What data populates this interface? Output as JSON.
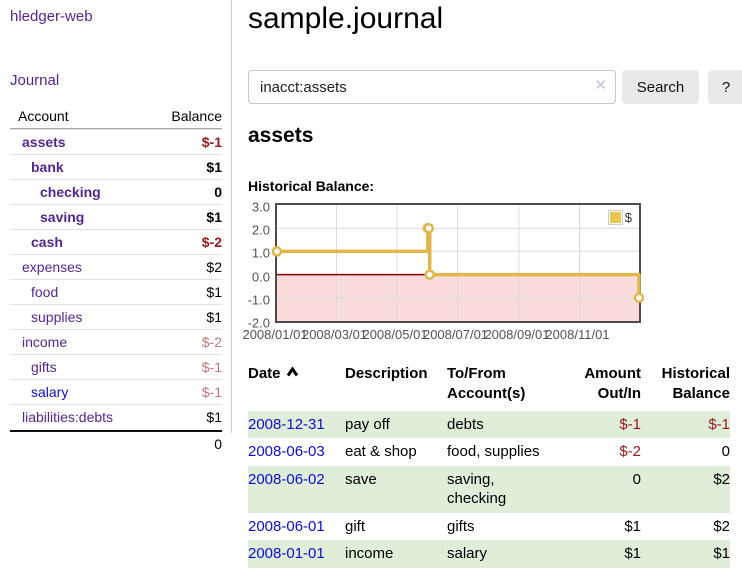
{
  "app": {
    "title": "hledger-web",
    "nav_journal": "Journal"
  },
  "sidebar": {
    "headers": {
      "account": "Account",
      "balance": "Balance"
    },
    "accounts": [
      {
        "name": "assets",
        "level": 1,
        "bold": true,
        "balance": "$-1",
        "balance_style": "neg"
      },
      {
        "name": "bank",
        "level": 2,
        "bold": true,
        "balance": "$1",
        "balance_style": "pos"
      },
      {
        "name": "checking",
        "level": 3,
        "bold": true,
        "balance": "0",
        "balance_style": "pos"
      },
      {
        "name": "saving",
        "level": 3,
        "bold": true,
        "balance": "$1",
        "balance_style": "pos"
      },
      {
        "name": "cash",
        "level": 2,
        "bold": true,
        "balance": "$-2",
        "balance_style": "neg"
      },
      {
        "name": "expenses",
        "level": 1,
        "bold": false,
        "balance": "$2",
        "balance_style": "pos"
      },
      {
        "name": "food",
        "level": 2,
        "bold": false,
        "balance": "$1",
        "balance_style": "pos"
      },
      {
        "name": "supplies",
        "level": 2,
        "bold": false,
        "balance": "$1",
        "balance_style": "pos"
      },
      {
        "name": "income",
        "level": 1,
        "bold": false,
        "balance": "$-2",
        "balance_style": "mutedneg"
      },
      {
        "name": "gifts",
        "level": 2,
        "bold": false,
        "balance": "$-1",
        "balance_style": "mutedneg"
      },
      {
        "name": "salary",
        "level": 2,
        "bold": false,
        "balance": "$-1",
        "balance_style": "mutedneg"
      },
      {
        "name": "liabilities:debts",
        "level": 1,
        "bold": false,
        "balance": "$1",
        "balance_style": "pos"
      }
    ],
    "total": "0"
  },
  "header": {
    "title": "sample.journal"
  },
  "search": {
    "value": "inacct:assets",
    "clear_icon": "✕",
    "button_label": "Search",
    "help_label": "?"
  },
  "account_page": {
    "heading": "assets",
    "chart_label": "Historical Balance:"
  },
  "chart_data": {
    "type": "line",
    "style": "step",
    "title": "Historical Balance:",
    "legend_label": "$",
    "legend_position": "top-right",
    "grid": true,
    "x_range": [
      "2008-01-01",
      "2008-12-31"
    ],
    "ylim": [
      -2.0,
      3.0
    ],
    "yticks": [
      3.0,
      2.0,
      1.0,
      0.0,
      -1.0,
      -2.0
    ],
    "xticks": [
      "2008/01/01",
      "2008/03/01",
      "2008/05/01",
      "2008/07/01",
      "2008/09/01",
      "2008/11/01"
    ],
    "series": [
      {
        "name": "$",
        "points": [
          [
            "2008-01-01",
            1
          ],
          [
            "2008-06-01",
            2
          ],
          [
            "2008-06-02",
            2
          ],
          [
            "2008-06-03",
            0
          ],
          [
            "2008-12-31",
            -1
          ]
        ]
      }
    ],
    "negative_region_shaded": true,
    "colors": {
      "line": "#dfb74c",
      "marker_fill": "#ffffff",
      "negative_fill": "#f9dbdb",
      "zero_line": "#8b0000",
      "gridline": "#dcdcdc",
      "border": "#4c4c4c"
    }
  },
  "register": {
    "headers": {
      "date": "Date",
      "description": "Description",
      "accounts": "To/From Account(s)",
      "amount": "Amount Out/In",
      "balance": "Historical Balance"
    },
    "rows": [
      {
        "date": "2008-12-31",
        "description": "pay off",
        "accounts": "debts",
        "amount": "$-1",
        "balance": "$-1"
      },
      {
        "date": "2008-06-03",
        "description": "eat & shop",
        "accounts": "food, supplies",
        "amount": "$-2",
        "balance": "0"
      },
      {
        "date": "2008-06-02",
        "description": "save",
        "accounts": "saving, checking",
        "amount": "0",
        "balance": "$2"
      },
      {
        "date": "2008-06-01",
        "description": "gift",
        "accounts": "gifts",
        "amount": "$1",
        "balance": "$2"
      },
      {
        "date": "2008-01-01",
        "description": "income",
        "accounts": "salary",
        "amount": "$1",
        "balance": "$1"
      }
    ]
  },
  "colors": {
    "link_purple": "#54278e",
    "link_blue": "#0d0dcc",
    "negative_strong": "#96191c",
    "negative_muted": "#c0777c",
    "row_green": "#dfedd9"
  }
}
